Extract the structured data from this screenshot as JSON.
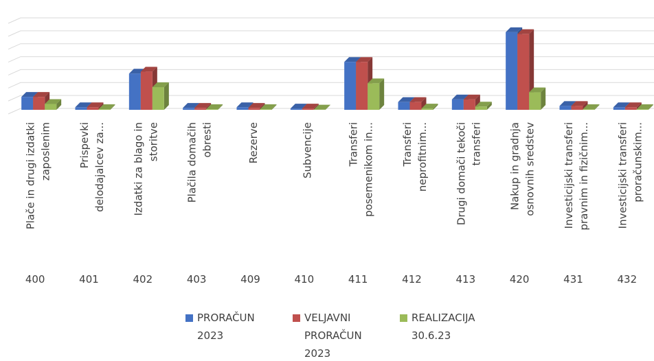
{
  "chart_data": {
    "type": "bar3d",
    "categories": [
      "400",
      "401",
      "402",
      "403",
      "409",
      "410",
      "411",
      "412",
      "413",
      "420",
      "431",
      "432"
    ],
    "category_descriptions": [
      [
        "Plače in drugi izdatki",
        "zaposlenim"
      ],
      [
        "Prispevki",
        "delodajalcev za..."
      ],
      [
        "Izdatki za blago in",
        "storitve"
      ],
      [
        "Plačila domačih",
        "obresti"
      ],
      [
        "Rezerve"
      ],
      [
        "Subvencije"
      ],
      [
        "Transferi",
        "posemenikom in..."
      ],
      [
        "Transferi",
        "neprofitnim..."
      ],
      [
        "Drugi domači tekoči",
        "transferi"
      ],
      [
        "Nakup in gradnja",
        "osnovnih sredstev"
      ],
      [
        "Investicijski transferi",
        "pravnim in fizičnim..."
      ],
      [
        "Investicijski transferi",
        "proračunskim..."
      ]
    ],
    "series": [
      {
        "name": "PRORAČUN 2023",
        "color": "#4472c4",
        "values": [
          1.0,
          0.2,
          2.8,
          0.15,
          0.2,
          0.1,
          3.7,
          0.6,
          0.8,
          6.0,
          0.3,
          0.2
        ]
      },
      {
        "name": "VELJAVNI PRORAČUN 2023",
        "color": "#c0504d",
        "values": [
          1.0,
          0.2,
          2.95,
          0.15,
          0.15,
          0.1,
          3.7,
          0.6,
          0.8,
          5.85,
          0.3,
          0.2
        ]
      },
      {
        "name": "REALIZACIJA 30.6.23",
        "color": "#9bbb59",
        "values": [
          0.45,
          0.05,
          1.75,
          0.05,
          0.05,
          0.02,
          2.05,
          0.1,
          0.25,
          1.35,
          0.05,
          0.05
        ]
      }
    ],
    "ylim": [
      0,
      7
    ],
    "yticks": [
      0,
      1,
      2,
      3,
      4,
      5,
      6,
      7
    ],
    "grid": true,
    "ytick_labels": false,
    "legend": "bottom"
  }
}
